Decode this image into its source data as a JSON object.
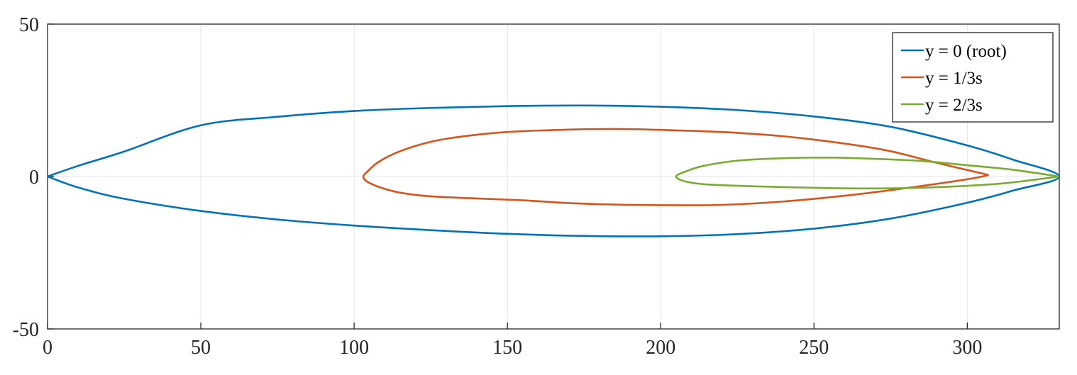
{
  "chart_data": {
    "type": "line",
    "title": "",
    "xlabel": "",
    "ylabel": "",
    "xlim": [
      0,
      330
    ],
    "ylim": [
      -50,
      50
    ],
    "xticks": [
      0,
      50,
      100,
      150,
      200,
      250,
      300
    ],
    "yticks": [
      -50,
      0,
      50
    ],
    "grid": true,
    "legend": "top-right",
    "series": [
      {
        "name": "y = 0 (root)",
        "color": "#0072BD",
        "points": [
          [
            0,
            0
          ],
          [
            10,
            3.5
          ],
          [
            25,
            8.2
          ],
          [
            50,
            16.8
          ],
          [
            75,
            19.6
          ],
          [
            100,
            21.5
          ],
          [
            125,
            22.5
          ],
          [
            150,
            23.1
          ],
          [
            175,
            23.3
          ],
          [
            200,
            22.9
          ],
          [
            225,
            21.8
          ],
          [
            250,
            19.7
          ],
          [
            275,
            16.3
          ],
          [
            300,
            10.2
          ],
          [
            315,
            5.5
          ],
          [
            330,
            0
          ],
          [
            315,
            -4.6
          ],
          [
            300,
            -8.6
          ],
          [
            275,
            -13.8
          ],
          [
            250,
            -17.1
          ],
          [
            225,
            -18.9
          ],
          [
            200,
            -19.6
          ],
          [
            175,
            -19.5
          ],
          [
            150,
            -18.8
          ],
          [
            125,
            -17.6
          ],
          [
            100,
            -16.1
          ],
          [
            75,
            -14.1
          ],
          [
            50,
            -11.3
          ],
          [
            25,
            -7.3
          ],
          [
            10,
            -3.6
          ],
          [
            0,
            0
          ]
        ]
      },
      {
        "name": "y = 1/3s",
        "color": "#D95319",
        "points": [
          [
            307,
            0.5
          ],
          [
            290,
            4.5
          ],
          [
            275,
            8.3
          ],
          [
            260,
            10.8
          ],
          [
            240,
            13.2
          ],
          [
            220,
            14.6
          ],
          [
            200,
            15.3
          ],
          [
            185,
            15.6
          ],
          [
            170,
            15.4
          ],
          [
            150,
            14.6
          ],
          [
            135,
            13.1
          ],
          [
            125,
            11.4
          ],
          [
            115,
            8.3
          ],
          [
            108,
            4.8
          ],
          [
            104,
            1.3
          ],
          [
            103,
            0
          ],
          [
            104,
            -1.5
          ],
          [
            108,
            -3.4
          ],
          [
            115,
            -5.3
          ],
          [
            125,
            -6.5
          ],
          [
            140,
            -7.2
          ],
          [
            155,
            -7.8
          ],
          [
            170,
            -8.7
          ],
          [
            185,
            -9.2
          ],
          [
            200,
            -9.4
          ],
          [
            220,
            -9.3
          ],
          [
            240,
            -8.2
          ],
          [
            260,
            -6.3
          ],
          [
            280,
            -3.8
          ],
          [
            300,
            -0.9
          ],
          [
            307,
            0.5
          ]
        ]
      },
      {
        "name": "y = 2/3s",
        "color": "#77AC30",
        "points": [
          [
            330,
            0
          ],
          [
            315,
            2.2
          ],
          [
            300,
            3.7
          ],
          [
            285,
            5.1
          ],
          [
            270,
            5.8
          ],
          [
            255,
            6.2
          ],
          [
            240,
            6
          ],
          [
            225,
            5.2
          ],
          [
            214,
            3.5
          ],
          [
            208,
            1.6
          ],
          [
            205,
            0
          ],
          [
            208,
            -1.6
          ],
          [
            215,
            -2.6
          ],
          [
            230,
            -3.2
          ],
          [
            250,
            -3.7
          ],
          [
            265,
            -3.9
          ],
          [
            280,
            -3.8
          ],
          [
            295,
            -3.3
          ],
          [
            310,
            -2.4
          ],
          [
            320,
            -1.3
          ],
          [
            330,
            0
          ]
        ]
      }
    ]
  }
}
